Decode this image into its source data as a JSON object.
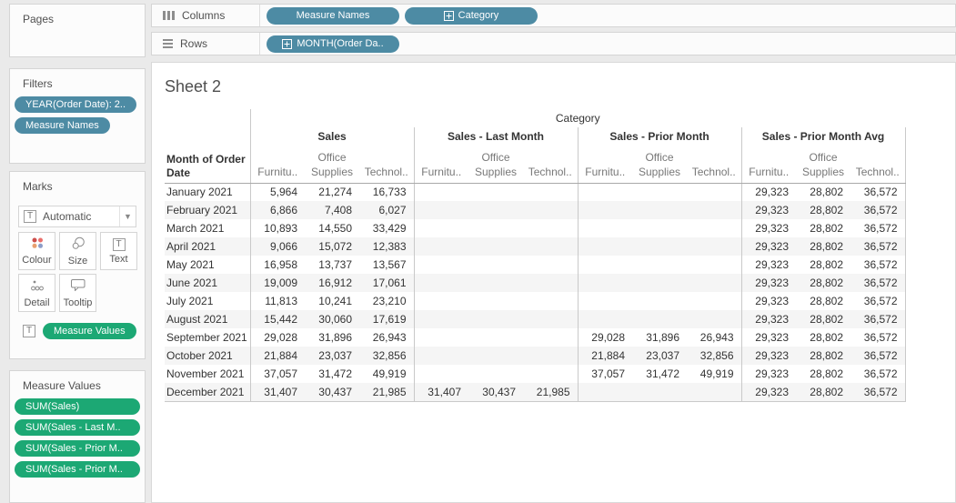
{
  "sidebar": {
    "pages": {
      "title": "Pages"
    },
    "filters": {
      "title": "Filters",
      "pills": [
        "YEAR(Order Date): 2..",
        "Measure Names"
      ]
    },
    "marks": {
      "title": "Marks",
      "mark_type_selector": "Automatic",
      "buttons": [
        {
          "label": "Colour"
        },
        {
          "label": "Size"
        },
        {
          "label": "Text"
        },
        {
          "label": "Detail"
        },
        {
          "label": "Tooltip"
        }
      ],
      "encoding_pill": "Measure Values"
    },
    "measure_values": {
      "title": "Measure Values",
      "pills": [
        "SUM(Sales)",
        "SUM(Sales - Last M..",
        "SUM(Sales - Prior M..",
        "SUM(Sales - Prior M.."
      ]
    }
  },
  "shelves": {
    "columns": {
      "label": "Columns",
      "pills": [
        {
          "text": "Measure Names",
          "expandable": false
        },
        {
          "text": "Category",
          "expandable": true
        }
      ]
    },
    "rows": {
      "label": "Rows",
      "pills": [
        {
          "text": "MONTH(Order Da..",
          "expandable": true
        }
      ]
    }
  },
  "sheet": {
    "title": "Sheet 2",
    "table": {
      "dimension_header": "Category",
      "row_axis_header": "Month of Order Date",
      "measure_groups": [
        "Sales",
        "Sales - Last Month",
        "Sales - Prior Month",
        "Sales - Prior Month Avg"
      ],
      "sub_columns": [
        "Furnitu..",
        "Office Supplies",
        "Technol.."
      ],
      "rows": [
        {
          "month": "January 2021",
          "values": [
            "5,964",
            "21,274",
            "16,733",
            "",
            "",
            "",
            "",
            "",
            "",
            "29,323",
            "28,802",
            "36,572"
          ]
        },
        {
          "month": "February 2021",
          "values": [
            "6,866",
            "7,408",
            "6,027",
            "",
            "",
            "",
            "",
            "",
            "",
            "29,323",
            "28,802",
            "36,572"
          ]
        },
        {
          "month": "March 2021",
          "values": [
            "10,893",
            "14,550",
            "33,429",
            "",
            "",
            "",
            "",
            "",
            "",
            "29,323",
            "28,802",
            "36,572"
          ]
        },
        {
          "month": "April 2021",
          "values": [
            "9,066",
            "15,072",
            "12,383",
            "",
            "",
            "",
            "",
            "",
            "",
            "29,323",
            "28,802",
            "36,572"
          ]
        },
        {
          "month": "May 2021",
          "values": [
            "16,958",
            "13,737",
            "13,567",
            "",
            "",
            "",
            "",
            "",
            "",
            "29,323",
            "28,802",
            "36,572"
          ]
        },
        {
          "month": "June 2021",
          "values": [
            "19,009",
            "16,912",
            "17,061",
            "",
            "",
            "",
            "",
            "",
            "",
            "29,323",
            "28,802",
            "36,572"
          ]
        },
        {
          "month": "July 2021",
          "values": [
            "11,813",
            "10,241",
            "23,210",
            "",
            "",
            "",
            "",
            "",
            "",
            "29,323",
            "28,802",
            "36,572"
          ]
        },
        {
          "month": "August 2021",
          "values": [
            "15,442",
            "30,060",
            "17,619",
            "",
            "",
            "",
            "",
            "",
            "",
            "29,323",
            "28,802",
            "36,572"
          ]
        },
        {
          "month": "September 2021",
          "values": [
            "29,028",
            "31,896",
            "26,943",
            "",
            "",
            "",
            "29,028",
            "31,896",
            "26,943",
            "29,323",
            "28,802",
            "36,572"
          ]
        },
        {
          "month": "October 2021",
          "values": [
            "21,884",
            "23,037",
            "32,856",
            "",
            "",
            "",
            "21,884",
            "23,037",
            "32,856",
            "29,323",
            "28,802",
            "36,572"
          ]
        },
        {
          "month": "November 2021",
          "values": [
            "37,057",
            "31,472",
            "49,919",
            "",
            "",
            "",
            "37,057",
            "31,472",
            "49,919",
            "29,323",
            "28,802",
            "36,572"
          ]
        },
        {
          "month": "December 2021",
          "values": [
            "31,407",
            "30,437",
            "21,985",
            "31,407",
            "30,437",
            "21,985",
            "",
            "",
            "",
            "29,323",
            "28,802",
            "36,572"
          ]
        }
      ]
    }
  },
  "colors": {
    "pill_blue": "#4D8BA4",
    "pill_green": "#1CA874",
    "header_text": "#333333",
    "sub_header_text": "#787878",
    "row_banding": "#F5F5F5"
  }
}
